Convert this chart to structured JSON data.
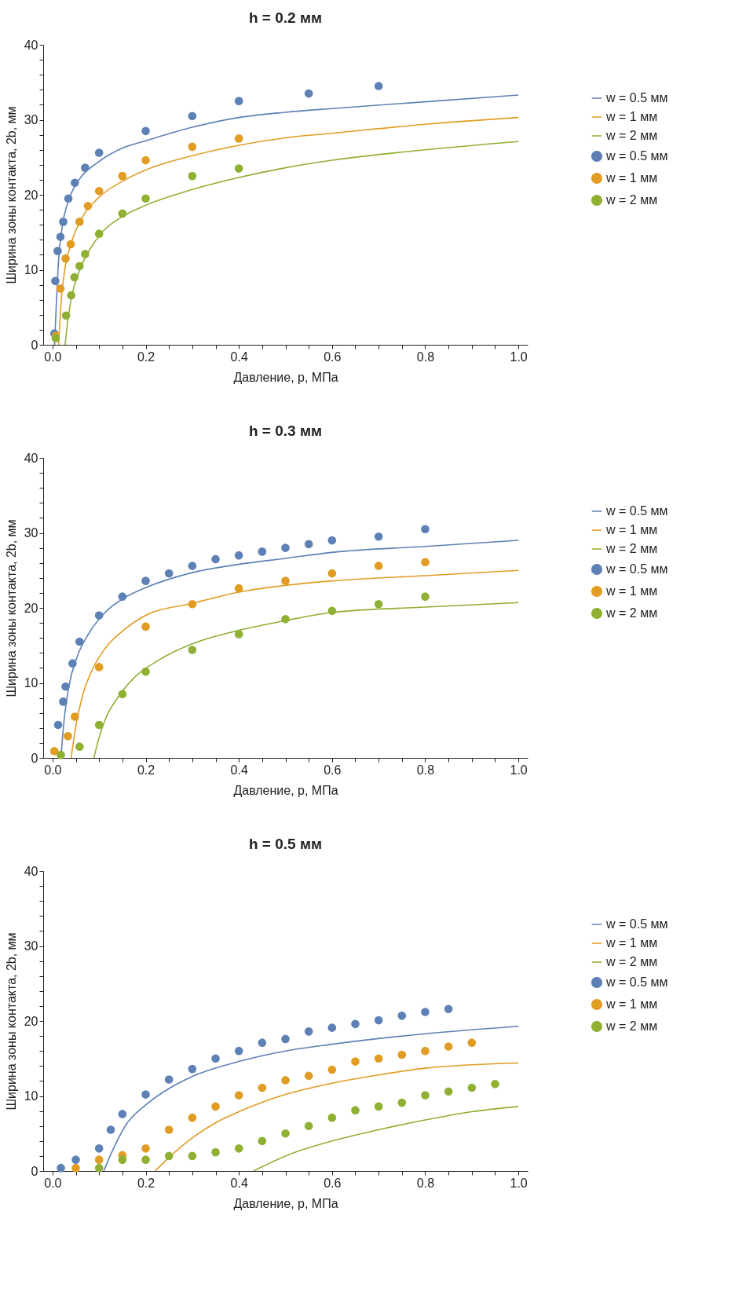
{
  "chart_data": [
    {
      "type": "line",
      "title": "h = 0.2 мм",
      "xlabel": "Давление, p, МПа",
      "ylabel": "Ширина зоны контакта, 2b, мм",
      "xlim": [
        -0.02,
        1.02
      ],
      "ylim": [
        0,
        40
      ],
      "xticks": [
        {
          "value": 0,
          "label": "0.0"
        },
        {
          "value": 0.05,
          "label": null
        },
        {
          "value": 0.1,
          "label": null
        },
        {
          "value": 0.15,
          "label": null
        },
        0.2,
        {
          "value": 0.25,
          "label": null
        },
        {
          "value": 0.3,
          "label": null
        },
        {
          "value": 0.35,
          "label": null
        },
        0.4,
        {
          "value": 0.45,
          "label": null
        },
        {
          "value": 0.5,
          "label": null
        },
        {
          "value": 0.55,
          "label": null
        },
        0.6,
        {
          "value": 0.65,
          "label": null
        },
        {
          "value": 0.7,
          "label": null
        },
        {
          "value": 0.75,
          "label": null
        },
        0.8,
        {
          "value": 0.85,
          "label": null
        },
        {
          "value": 0.9,
          "label": null
        },
        {
          "value": 0.95,
          "label": null
        },
        {
          "value": 1,
          "label": "1.0"
        }
      ],
      "yticks": [
        0,
        {
          "value": 2,
          "label": null
        },
        {
          "value": 4,
          "label": null
        },
        {
          "value": 6,
          "label": null
        },
        {
          "value": 8,
          "label": null
        },
        10,
        {
          "value": 12,
          "label": null
        },
        {
          "value": 14,
          "label": null
        },
        {
          "value": 16,
          "label": null
        },
        {
          "value": 18,
          "label": null
        },
        20,
        {
          "value": 22,
          "label": null
        },
        {
          "value": 24,
          "label": null
        },
        {
          "value": 26,
          "label": null
        },
        {
          "value": 28,
          "label": null
        },
        30,
        {
          "value": 32,
          "label": null
        },
        {
          "value": 34,
          "label": null
        },
        {
          "value": 36,
          "label": null
        },
        {
          "value": 38,
          "label": null
        },
        40
      ],
      "legend": "right",
      "grid": false,
      "series": [
        {
          "name": "w = 0.5 мм",
          "color": "#5e81b5",
          "x": [
            0.0045,
            0.013,
            0.021,
            0.035,
            0.058,
            0.097,
            0.153,
            0.2,
            0.3,
            0.4,
            0.5,
            0.6,
            0.8,
            1.0
          ],
          "values": [
            0,
            11.3,
            15.8,
            19.3,
            22.1,
            24.3,
            26.3,
            27.2,
            29.0,
            30.3,
            31.0,
            31.5,
            32.4,
            33.3
          ]
        },
        {
          "name": "w = 1 мм",
          "color": "#e19c24",
          "x": [
            0.013,
            0.019,
            0.027,
            0.041,
            0.063,
            0.097,
            0.153,
            0.2,
            0.3,
            0.4,
            0.5,
            0.6,
            0.8,
            1.0
          ],
          "values": [
            0,
            6.1,
            10.3,
            13.7,
            16.9,
            19.5,
            21.9,
            23.3,
            25.2,
            26.6,
            27.6,
            28.2,
            29.4,
            30.3
          ]
        },
        {
          "name": "w = 2 мм",
          "color": "#8fb032",
          "x": [
            0.027,
            0.033,
            0.041,
            0.058,
            0.08,
            0.108,
            0.153,
            0.2,
            0.3,
            0.4,
            0.5,
            0.6,
            0.8,
            1.0
          ],
          "values": [
            0,
            3.3,
            6.4,
            9.9,
            12.7,
            15.1,
            17.2,
            18.6,
            20.7,
            22.3,
            23.6,
            24.6,
            26.0,
            27.1
          ]
        },
        {
          "name": "w = 0.5 мм",
          "type": "scatter",
          "color": "#5e81b5",
          "x": [
            0.004,
            0.006,
            0.011,
            0.017,
            0.023,
            0.034,
            0.048,
            0.07,
            0.1,
            0.2,
            0.3,
            0.4,
            0.55,
            0.7
          ],
          "values": [
            1.5,
            8.5,
            12.5,
            14.4,
            16.4,
            19.5,
            21.6,
            23.6,
            25.6,
            28.5,
            30.5,
            32.5,
            33.5,
            34.5
          ]
        },
        {
          "name": "w = 1 мм",
          "type": "scatter",
          "color": "#e19c24",
          "x": [
            0.007,
            0.017,
            0.028,
            0.039,
            0.058,
            0.076,
            0.1,
            0.15,
            0.2,
            0.3,
            0.4
          ],
          "values": [
            1.2,
            7.5,
            11.5,
            13.4,
            16.4,
            18.5,
            20.5,
            22.5,
            24.6,
            26.4,
            27.5
          ]
        },
        {
          "name": "w = 2 мм",
          "type": "scatter",
          "color": "#8fb032",
          "x": [
            0.007,
            0.029,
            0.04,
            0.047,
            0.058,
            0.07,
            0.1,
            0.15,
            0.2,
            0.3,
            0.4
          ],
          "values": [
            0.9,
            3.9,
            6.6,
            9.0,
            10.5,
            12.1,
            14.8,
            17.5,
            19.5,
            22.5,
            23.5
          ]
        }
      ]
    },
    {
      "type": "line",
      "title": "h = 0.3 мм",
      "xlabel": "Давление, p, МПа",
      "ylabel": "Ширина зоны контакта, 2b, мм",
      "xlim": [
        -0.02,
        1.02
      ],
      "ylim": [
        0,
        40
      ],
      "xticks": [
        {
          "value": 0,
          "label": "0.0"
        },
        {
          "value": 0.05,
          "label": null
        },
        {
          "value": 0.1,
          "label": null
        },
        {
          "value": 0.15,
          "label": null
        },
        0.2,
        {
          "value": 0.25,
          "label": null
        },
        {
          "value": 0.3,
          "label": null
        },
        {
          "value": 0.35,
          "label": null
        },
        0.4,
        {
          "value": 0.45,
          "label": null
        },
        {
          "value": 0.5,
          "label": null
        },
        {
          "value": 0.55,
          "label": null
        },
        0.6,
        {
          "value": 0.65,
          "label": null
        },
        {
          "value": 0.7,
          "label": null
        },
        {
          "value": 0.75,
          "label": null
        },
        0.8,
        {
          "value": 0.85,
          "label": null
        },
        {
          "value": 0.9,
          "label": null
        },
        {
          "value": 0.95,
          "label": null
        },
        {
          "value": 1,
          "label": "1.0"
        }
      ],
      "yticks": [
        0,
        {
          "value": 2,
          "label": null
        },
        {
          "value": 4,
          "label": null
        },
        {
          "value": 6,
          "label": null
        },
        {
          "value": 8,
          "label": null
        },
        10,
        {
          "value": 12,
          "label": null
        },
        {
          "value": 14,
          "label": null
        },
        {
          "value": 16,
          "label": null
        },
        {
          "value": 18,
          "label": null
        },
        20,
        {
          "value": 22,
          "label": null
        },
        {
          "value": 24,
          "label": null
        },
        {
          "value": 26,
          "label": null
        },
        {
          "value": 28,
          "label": null
        },
        30,
        {
          "value": 32,
          "label": null
        },
        {
          "value": 34,
          "label": null
        },
        {
          "value": 36,
          "label": null
        },
        {
          "value": 38,
          "label": null
        },
        40
      ],
      "legend": "right",
      "grid": false,
      "series": [
        {
          "name": "w = 0.5 мм",
          "color": "#5e81b5",
          "x": [
            0.018,
            0.025,
            0.035,
            0.053,
            0.078,
            0.113,
            0.156,
            0.2,
            0.3,
            0.4,
            0.5,
            0.6,
            0.8,
            1.0
          ],
          "values": [
            0,
            5.1,
            9.5,
            13.5,
            16.6,
            19.4,
            21.4,
            22.7,
            24.7,
            25.8,
            26.6,
            27.4,
            28.2,
            29.0
          ]
        },
        {
          "name": "w = 1 мм",
          "color": "#e19c24",
          "x": [
            0.04,
            0.05,
            0.064,
            0.085,
            0.113,
            0.156,
            0.2,
            0.3,
            0.4,
            0.5,
            0.6,
            0.8,
            1.0
          ],
          "values": [
            0,
            4.2,
            8.2,
            11.7,
            14.6,
            17.2,
            19.0,
            20.6,
            22.1,
            23.0,
            23.6,
            24.3,
            25.0
          ]
        },
        {
          "name": "w = 2 мм",
          "color": "#8fb032",
          "x": [
            0.089,
            0.099,
            0.113,
            0.142,
            0.177,
            0.227,
            0.3,
            0.4,
            0.5,
            0.6,
            0.8,
            1.0
          ],
          "values": [
            0,
            2.5,
            5.1,
            8.2,
            10.8,
            13.0,
            15.2,
            17.0,
            18.3,
            19.4,
            20.1,
            20.7
          ]
        },
        {
          "name": "w = 0.5 мм",
          "type": "scatter",
          "color": "#5e81b5",
          "x": [
            0.012,
            0.023,
            0.028,
            0.043,
            0.058,
            0.1,
            0.15,
            0.2,
            0.25,
            0.3,
            0.35,
            0.4,
            0.45,
            0.5,
            0.55,
            0.6,
            0.7,
            0.8
          ],
          "values": [
            4.4,
            7.5,
            9.5,
            12.6,
            15.5,
            19.0,
            21.5,
            23.6,
            24.6,
            25.6,
            26.5,
            27.0,
            27.5,
            28.0,
            28.5,
            29.0,
            29.5,
            30.5
          ]
        },
        {
          "name": "w = 1 мм",
          "type": "scatter",
          "color": "#e19c24",
          "x": [
            0.004,
            0.033,
            0.048,
            0.1,
            0.2,
            0.3,
            0.4,
            0.5,
            0.6,
            0.7,
            0.8
          ],
          "values": [
            0.9,
            2.9,
            5.5,
            12.1,
            17.5,
            20.5,
            22.6,
            23.6,
            24.6,
            25.6,
            26.1
          ]
        },
        {
          "name": "w = 2 мм",
          "type": "scatter",
          "color": "#8fb032",
          "x": [
            0.018,
            0.058,
            0.1,
            0.15,
            0.2,
            0.3,
            0.4,
            0.5,
            0.6,
            0.7,
            0.8
          ],
          "values": [
            0.4,
            1.5,
            4.4,
            8.5,
            11.5,
            14.4,
            16.5,
            18.5,
            19.6,
            20.5,
            21.5
          ]
        }
      ]
    },
    {
      "type": "line",
      "title": "h = 0.5 мм",
      "xlabel": "Давление, p, МПа",
      "ylabel": "Ширина зоны контакта, 2b, мм",
      "xlim": [
        -0.02,
        1.02
      ],
      "ylim": [
        0,
        40
      ],
      "xticks": [
        {
          "value": 0,
          "label": "0.0"
        },
        {
          "value": 0.05,
          "label": null
        },
        {
          "value": 0.1,
          "label": null
        },
        {
          "value": 0.15,
          "label": null
        },
        0.2,
        {
          "value": 0.25,
          "label": null
        },
        {
          "value": 0.3,
          "label": null
        },
        {
          "value": 0.35,
          "label": null
        },
        0.4,
        {
          "value": 0.45,
          "label": null
        },
        {
          "value": 0.5,
          "label": null
        },
        {
          "value": 0.55,
          "label": null
        },
        0.6,
        {
          "value": 0.65,
          "label": null
        },
        {
          "value": 0.7,
          "label": null
        },
        {
          "value": 0.75,
          "label": null
        },
        0.8,
        {
          "value": 0.85,
          "label": null
        },
        {
          "value": 0.9,
          "label": null
        },
        {
          "value": 0.95,
          "label": null
        },
        {
          "value": 1,
          "label": "1.0"
        }
      ],
      "yticks": [
        0,
        {
          "value": 2,
          "label": null
        },
        {
          "value": 4,
          "label": null
        },
        {
          "value": 6,
          "label": null
        },
        {
          "value": 8,
          "label": null
        },
        10,
        {
          "value": 12,
          "label": null
        },
        {
          "value": 14,
          "label": null
        },
        {
          "value": 16,
          "label": null
        },
        {
          "value": 18,
          "label": null
        },
        20,
        {
          "value": 22,
          "label": null
        },
        {
          "value": 24,
          "label": null
        },
        {
          "value": 26,
          "label": null
        },
        {
          "value": 28,
          "label": null
        },
        30,
        {
          "value": 32,
          "label": null
        },
        {
          "value": 34,
          "label": null
        },
        {
          "value": 36,
          "label": null
        },
        {
          "value": 38,
          "label": null
        },
        40
      ],
      "legend": "right",
      "grid": false,
      "series": [
        {
          "name": "w = 0.5 мм",
          "color": "#5e81b5",
          "x": [
            0.11,
            0.128,
            0.156,
            0.2,
            0.25,
            0.3,
            0.4,
            0.5,
            0.6,
            0.8,
            1.0
          ],
          "values": [
            0,
            2.6,
            6.0,
            8.8,
            11.0,
            12.6,
            14.6,
            16.0,
            16.9,
            18.3,
            19.3
          ]
        },
        {
          "name": "w = 1 мм",
          "color": "#e19c24",
          "x": [
            0.22,
            0.25,
            0.3,
            0.355,
            0.4,
            0.5,
            0.6,
            0.7,
            0.8,
            1.0
          ],
          "values": [
            0,
            1.8,
            4.4,
            6.6,
            7.9,
            10.2,
            11.7,
            12.8,
            13.7,
            14.4
          ]
        },
        {
          "name": "w = 2 мм",
          "color": "#8fb032",
          "x": [
            0.431,
            0.468,
            0.5,
            0.6,
            0.7,
            0.8,
            0.9,
            1.0
          ],
          "values": [
            0,
            1.1,
            2.0,
            4.0,
            5.5,
            6.8,
            7.9,
            8.6
          ]
        },
        {
          "name": "w = 0.5 мм",
          "type": "scatter",
          "color": "#5e81b5",
          "x": [
            0.018,
            0.05,
            0.1,
            0.125,
            0.15,
            0.2,
            0.25,
            0.3,
            0.35,
            0.4,
            0.45,
            0.5,
            0.55,
            0.6,
            0.65,
            0.7,
            0.75,
            0.8,
            0.85
          ],
          "values": [
            0.4,
            1.5,
            3.0,
            5.5,
            7.6,
            10.2,
            12.2,
            13.6,
            15.0,
            16.0,
            17.1,
            17.6,
            18.6,
            19.1,
            19.6,
            20.1,
            20.7,
            21.2,
            21.6
          ]
        },
        {
          "name": "w = 1 мм",
          "type": "scatter",
          "color": "#e19c24",
          "x": [
            0.05,
            0.1,
            0.15,
            0.2,
            0.25,
            0.3,
            0.35,
            0.4,
            0.45,
            0.5,
            0.55,
            0.6,
            0.65,
            0.7,
            0.75,
            0.8,
            0.85,
            0.9
          ],
          "values": [
            0.4,
            1.5,
            2.1,
            3.0,
            5.5,
            7.1,
            8.6,
            10.1,
            11.1,
            12.1,
            12.7,
            13.5,
            14.6,
            15.0,
            15.5,
            16.0,
            16.6,
            17.1
          ]
        },
        {
          "name": "w = 2 мм",
          "type": "scatter",
          "color": "#8fb032",
          "x": [
            0.1,
            0.15,
            0.2,
            0.25,
            0.3,
            0.35,
            0.4,
            0.45,
            0.5,
            0.55,
            0.6,
            0.65,
            0.7,
            0.75,
            0.8,
            0.85,
            0.9,
            0.95
          ],
          "values": [
            0.4,
            1.5,
            1.5,
            2.0,
            2.0,
            2.5,
            3.0,
            4.0,
            5.0,
            6.0,
            7.1,
            8.1,
            8.6,
            9.1,
            10.1,
            10.6,
            11.1,
            11.6
          ]
        }
      ]
    }
  ]
}
